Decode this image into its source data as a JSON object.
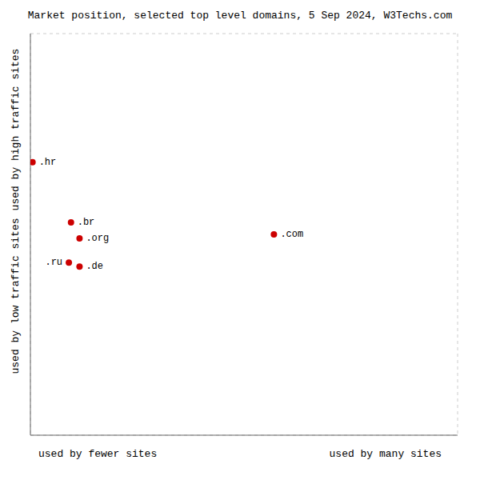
{
  "chart_data": {
    "type": "scatter",
    "title": "Market position, selected top level domains, 5 Sep 2024, W3Techs.com",
    "xlabel_left": "used by fewer sites",
    "xlabel_right": "used by many sites",
    "ylabel_top": "used by high traffic sites",
    "ylabel_bottom": "used by low traffic sites",
    "color": "#cc0000",
    "points": [
      {
        "label": ".hr",
        "x": 0.5,
        "y": 68
      },
      {
        "label": ".br",
        "x": 9.5,
        "y": 53
      },
      {
        "label": ".org",
        "x": 11.5,
        "y": 49
      },
      {
        "label": ".ru",
        "x": 9.0,
        "y": 43
      },
      {
        "label": ".de",
        "x": 11.5,
        "y": 42
      },
      {
        "label": ".com",
        "x": 57.0,
        "y": 50
      }
    ],
    "xlim": [
      0,
      100
    ],
    "ylim": [
      0,
      100
    ],
    "xticks": [
      0,
      25,
      50,
      75,
      100
    ],
    "yticks": [
      0,
      25,
      50,
      75,
      100
    ],
    "grid": true,
    "tick_labels": false,
    "data_labels": true
  }
}
